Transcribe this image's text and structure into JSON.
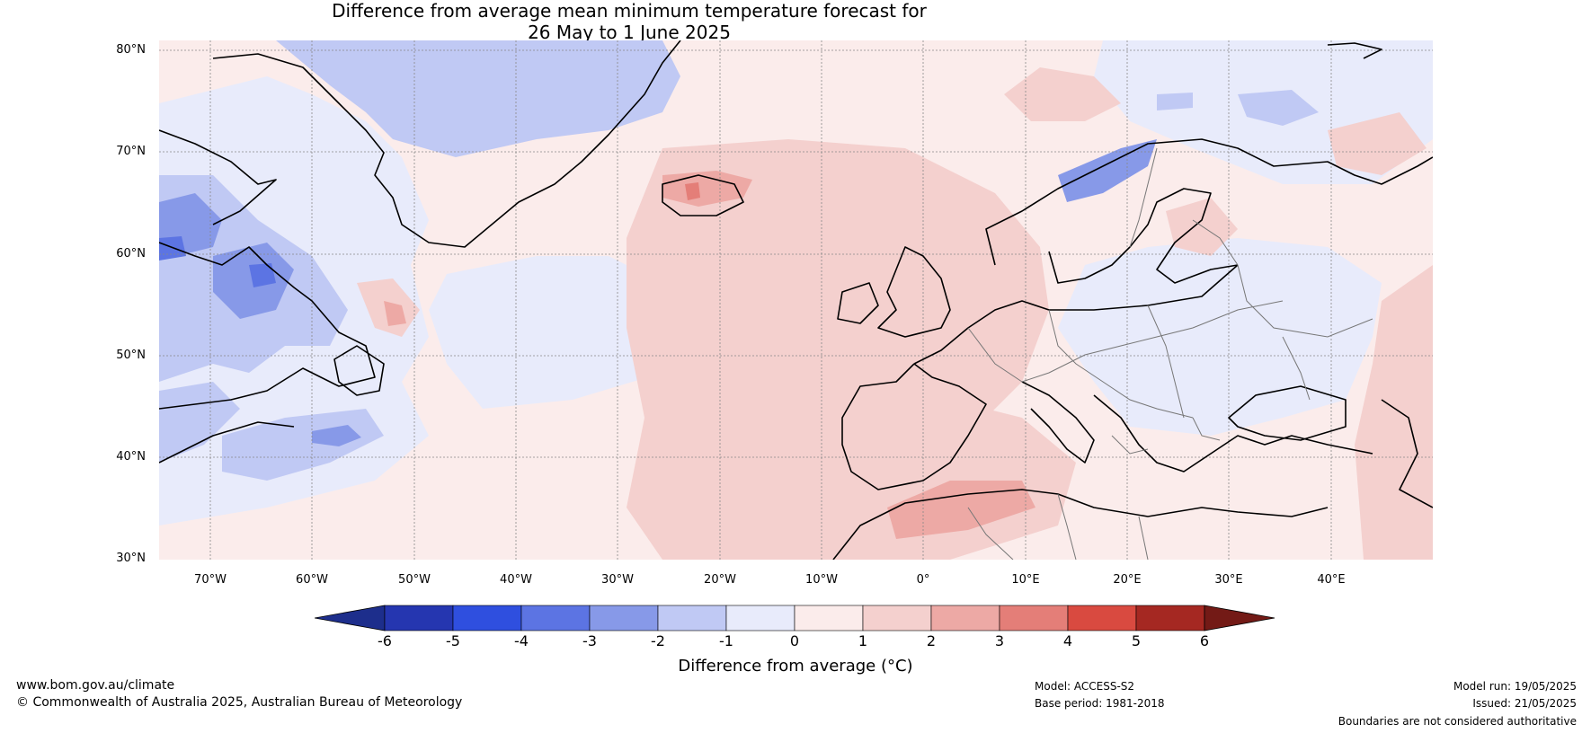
{
  "title": {
    "line1": "Difference from average mean minimum temperature forecast for",
    "line2": "26 May to 1 June 2025"
  },
  "map": {
    "latitude_labels": [
      "80°N",
      "70°N",
      "60°N",
      "50°N",
      "40°N",
      "30°N"
    ],
    "longitude_labels": [
      "70°W",
      "60°W",
      "50°W",
      "40°W",
      "30°W",
      "20°W",
      "10°W",
      "0°",
      "10°E",
      "20°E",
      "30°E",
      "40°E"
    ],
    "background_color": "#fbeceb",
    "coastline_color": "#000000",
    "border_color": "#777777"
  },
  "colorbar": {
    "ticks": [
      "-6",
      "-5",
      "-4",
      "-3",
      "-2",
      "-1",
      "0",
      "1",
      "2",
      "3",
      "4",
      "5",
      "6"
    ],
    "colors": [
      "#1d2e8c",
      "#2536b0",
      "#2f4fdf",
      "#5c74e3",
      "#8799e8",
      "#c0c9f4",
      "#e8ebfb",
      "#fbeceb",
      "#f4d0ce",
      "#eda9a5",
      "#e47e78",
      "#d94a40",
      "#a52822",
      "#731a16"
    ],
    "label": "Difference from average (°C)"
  },
  "footer": {
    "url": "www.bom.gov.au/climate",
    "copyright": "© Commonwealth of Australia 2025, Australian Bureau of Meteorology",
    "model": "Model: ACCESS-S2",
    "base_period": "Base period: 1981-2018",
    "model_run": "Model run: 19/05/2025",
    "issued": "Issued: 21/05/2025",
    "disclaimer": "Boundaries are not considered authoritative"
  }
}
